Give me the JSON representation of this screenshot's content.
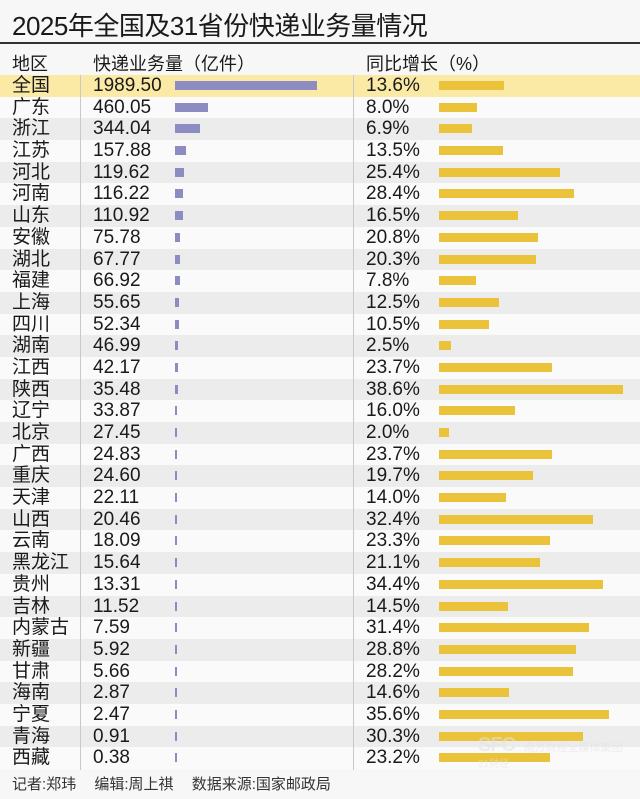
{
  "title": "2025年全国及31省份快递业务量情况",
  "headers": {
    "region": "地区",
    "volume": "快递业务量（亿件）",
    "growth": "同比增长（%）"
  },
  "footer": {
    "reporter": "记者:郑玮",
    "editor": "编辑:周上祺",
    "source": "数据来源:国家邮政局"
  },
  "watermark": {
    "brand": "SFC",
    "org": "南方财经全媒体集团",
    "sub": "21财经"
  },
  "colors": {
    "volume_bar": "#8c8cc2",
    "growth_bar": "#ebc33b",
    "highlight_row": "#fbe9a6"
  },
  "chart_data": {
    "type": "table",
    "title": "2025年全国及31省份快递业务量情况",
    "columns": [
      "地区",
      "快递业务量（亿件）",
      "同比增长（%）"
    ],
    "categories": [
      "全国",
      "广东",
      "浙江",
      "江苏",
      "河北",
      "河南",
      "山东",
      "安徽",
      "湖北",
      "福建",
      "上海",
      "四川",
      "湖南",
      "江西",
      "陕西",
      "辽宁",
      "北京",
      "广西",
      "重庆",
      "天津",
      "山西",
      "云南",
      "黑龙江",
      "贵州",
      "吉林",
      "内蒙古",
      "新疆",
      "甘肃",
      "海南",
      "宁夏",
      "青海",
      "西藏"
    ],
    "series": [
      {
        "name": "快递业务量（亿件）",
        "type": "bar",
        "values": [
          1989.5,
          460.05,
          344.04,
          157.88,
          119.62,
          116.22,
          110.92,
          75.78,
          67.77,
          66.92,
          55.65,
          52.34,
          46.99,
          42.17,
          35.48,
          33.87,
          27.45,
          24.83,
          24.6,
          22.11,
          20.46,
          18.09,
          15.64,
          13.31,
          11.52,
          7.59,
          5.92,
          5.66,
          2.87,
          2.47,
          0.91,
          0.38
        ]
      },
      {
        "name": "同比增长（%）",
        "type": "bar",
        "values": [
          13.6,
          8.0,
          6.9,
          13.5,
          25.4,
          28.4,
          16.5,
          20.8,
          20.3,
          7.8,
          12.5,
          10.5,
          2.5,
          23.7,
          38.6,
          16.0,
          2.0,
          23.7,
          19.7,
          14.0,
          32.4,
          23.3,
          21.1,
          34.4,
          14.5,
          31.4,
          28.8,
          28.2,
          14.6,
          35.6,
          30.3,
          23.2
        ]
      }
    ],
    "rows": [
      {
        "region": "全国",
        "volume": "1989.50",
        "growth": "13.6%"
      },
      {
        "region": "广东",
        "volume": "460.05",
        "growth": "8.0%"
      },
      {
        "region": "浙江",
        "volume": "344.04",
        "growth": "6.9%"
      },
      {
        "region": "江苏",
        "volume": "157.88",
        "growth": "13.5%"
      },
      {
        "region": "河北",
        "volume": "119.62",
        "growth": "25.4%"
      },
      {
        "region": "河南",
        "volume": "116.22",
        "growth": "28.4%"
      },
      {
        "region": "山东",
        "volume": "110.92",
        "growth": "16.5%"
      },
      {
        "region": "安徽",
        "volume": "75.78",
        "growth": "20.8%"
      },
      {
        "region": "湖北",
        "volume": "67.77",
        "growth": "20.3%"
      },
      {
        "region": "福建",
        "volume": "66.92",
        "growth": "7.8%"
      },
      {
        "region": "上海",
        "volume": "55.65",
        "growth": "12.5%"
      },
      {
        "region": "四川",
        "volume": "52.34",
        "growth": "10.5%"
      },
      {
        "region": "湖南",
        "volume": "46.99",
        "growth": "2.5%"
      },
      {
        "region": "江西",
        "volume": "42.17",
        "growth": "23.7%"
      },
      {
        "region": "陕西",
        "volume": "35.48",
        "growth": "38.6%"
      },
      {
        "region": "辽宁",
        "volume": "33.87",
        "growth": "16.0%"
      },
      {
        "region": "北京",
        "volume": "27.45",
        "growth": "2.0%"
      },
      {
        "region": "广西",
        "volume": "24.83",
        "growth": "23.7%"
      },
      {
        "region": "重庆",
        "volume": "24.60",
        "growth": "19.7%"
      },
      {
        "region": "天津",
        "volume": "22.11",
        "growth": "14.0%"
      },
      {
        "region": "山西",
        "volume": "20.46",
        "growth": "32.4%"
      },
      {
        "region": "云南",
        "volume": "18.09",
        "growth": "23.3%"
      },
      {
        "region": "黑龙江",
        "volume": "15.64",
        "growth": "21.1%"
      },
      {
        "region": "贵州",
        "volume": "13.31",
        "growth": "34.4%"
      },
      {
        "region": "吉林",
        "volume": "11.52",
        "growth": "14.5%"
      },
      {
        "region": "内蒙古",
        "volume": "7.59",
        "growth": "31.4%"
      },
      {
        "region": "新疆",
        "volume": "5.92",
        "growth": "28.8%"
      },
      {
        "region": "甘肃",
        "volume": "5.66",
        "growth": "28.2%"
      },
      {
        "region": "海南",
        "volume": "2.87",
        "growth": "14.6%"
      },
      {
        "region": "宁夏",
        "volume": "2.47",
        "growth": "35.6%"
      },
      {
        "region": "青海",
        "volume": "0.91",
        "growth": "30.3%"
      },
      {
        "region": "西藏",
        "volume": "0.38",
        "growth": "23.2%"
      }
    ],
    "highlight_row": 0,
    "grid": false,
    "legend": "none"
  }
}
